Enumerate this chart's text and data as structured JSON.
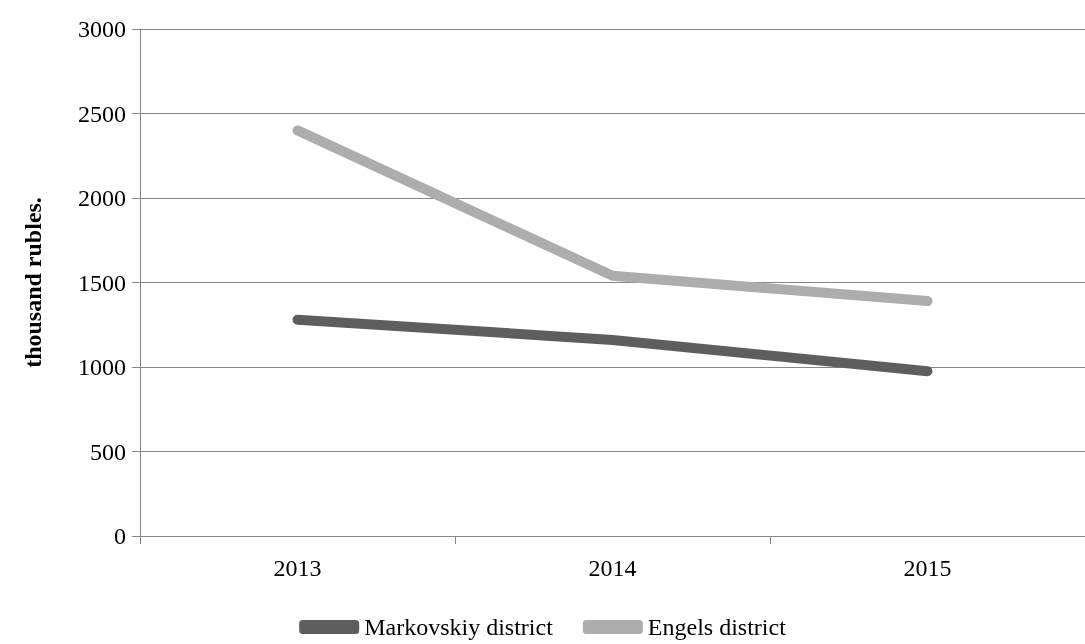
{
  "chart_data": {
    "type": "line",
    "ylabel": "thousand rubles.",
    "categories": [
      "2013",
      "2014",
      "2015"
    ],
    "series": [
      {
        "name": "Markovskiy district",
        "color": "#5e5e5e",
        "values": [
          1280,
          1160,
          975
        ]
      },
      {
        "name": "Engels district",
        "color": "#adadad",
        "values": [
          2400,
          1540,
          1390
        ]
      }
    ],
    "ylim": [
      0,
      3000
    ],
    "yticks": [
      0,
      500,
      1000,
      1500,
      2000,
      2500,
      3000
    ],
    "grid": "y",
    "legend": "bottom",
    "marker": "none",
    "line_style": "solid"
  }
}
